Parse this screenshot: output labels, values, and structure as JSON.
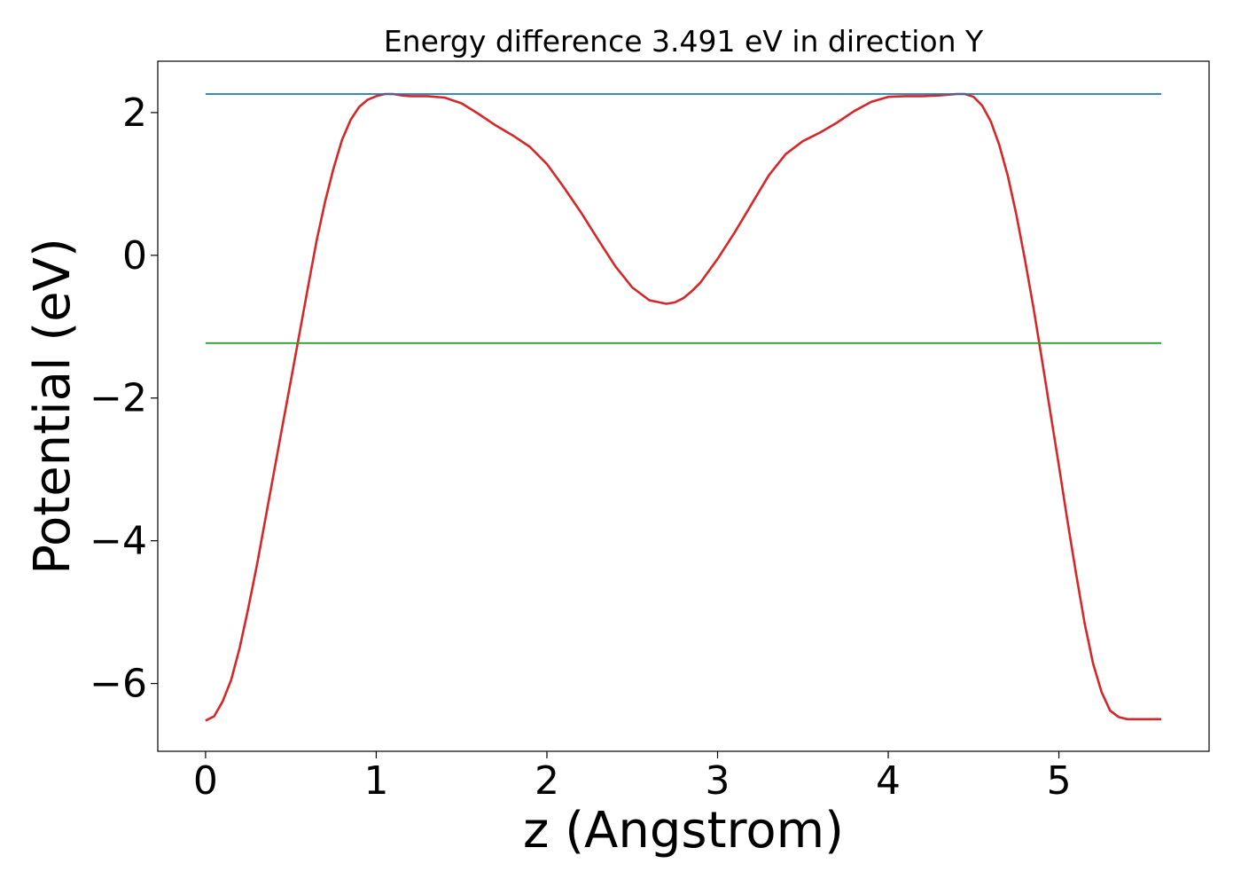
{
  "chart_data": {
    "type": "line",
    "title": "Energy difference 3.491 eV in direction Y",
    "xlabel": "z (Angstrom)",
    "ylabel": "Potential (eV)",
    "xlim": [
      -0.28,
      5.88
    ],
    "ylim": [
      -6.95,
      2.72
    ],
    "xticks": [
      0,
      1,
      2,
      3,
      4,
      5
    ],
    "xtick_labels": [
      "0",
      "1",
      "2",
      "3",
      "4",
      "5"
    ],
    "yticks": [
      -6,
      -4,
      -2,
      0,
      2
    ],
    "ytick_labels": [
      "−6",
      "−4",
      "−2",
      "0",
      "2"
    ],
    "grid": false,
    "series": [
      {
        "color": "#d62728",
        "x": [
          0.0,
          0.05,
          0.1,
          0.15,
          0.2,
          0.25,
          0.3,
          0.35,
          0.4,
          0.45,
          0.5,
          0.55,
          0.6,
          0.65,
          0.7,
          0.75,
          0.8,
          0.85,
          0.9,
          0.95,
          1.0,
          1.05,
          1.1,
          1.15,
          1.2,
          1.3,
          1.4,
          1.5,
          1.6,
          1.7,
          1.8,
          1.9,
          2.0,
          2.1,
          2.2,
          2.3,
          2.4,
          2.5,
          2.6,
          2.7,
          2.75,
          2.8,
          2.85,
          2.9,
          3.0,
          3.1,
          3.2,
          3.3,
          3.4,
          3.5,
          3.6,
          3.7,
          3.8,
          3.9,
          4.0,
          4.1,
          4.2,
          4.3,
          4.4,
          4.45,
          4.5,
          4.55,
          4.6,
          4.65,
          4.7,
          4.75,
          4.8,
          4.85,
          4.9,
          4.95,
          5.0,
          5.05,
          5.1,
          5.15,
          5.2,
          5.25,
          5.3,
          5.35,
          5.4,
          5.45,
          5.5,
          5.55,
          5.6
        ],
        "y": [
          -6.52,
          -6.46,
          -6.25,
          -5.95,
          -5.5,
          -4.95,
          -4.35,
          -3.7,
          -3.05,
          -2.4,
          -1.75,
          -1.1,
          -0.45,
          0.2,
          0.75,
          1.22,
          1.62,
          1.9,
          2.08,
          2.18,
          2.23,
          2.26,
          2.26,
          2.24,
          2.23,
          2.23,
          2.21,
          2.13,
          1.98,
          1.82,
          1.68,
          1.52,
          1.28,
          0.95,
          0.6,
          0.22,
          -0.15,
          -0.45,
          -0.63,
          -0.68,
          -0.66,
          -0.6,
          -0.5,
          -0.38,
          -0.05,
          0.32,
          0.72,
          1.12,
          1.42,
          1.6,
          1.72,
          1.86,
          2.02,
          2.15,
          2.22,
          2.23,
          2.23,
          2.24,
          2.26,
          2.26,
          2.22,
          2.1,
          1.88,
          1.55,
          1.12,
          0.58,
          -0.05,
          -0.72,
          -1.45,
          -2.2,
          -2.95,
          -3.72,
          -4.45,
          -5.15,
          -5.72,
          -6.12,
          -6.38,
          -6.47,
          -6.5,
          -6.5,
          -6.5,
          -6.5,
          -6.5
        ]
      },
      {
        "color": "#1f77b4",
        "x": [
          0.0,
          5.6
        ],
        "y": [
          2.26,
          2.26
        ]
      },
      {
        "color": "#2ca02c",
        "x": [
          0.0,
          5.6
        ],
        "y": [
          -1.23,
          -1.23
        ]
      }
    ]
  }
}
